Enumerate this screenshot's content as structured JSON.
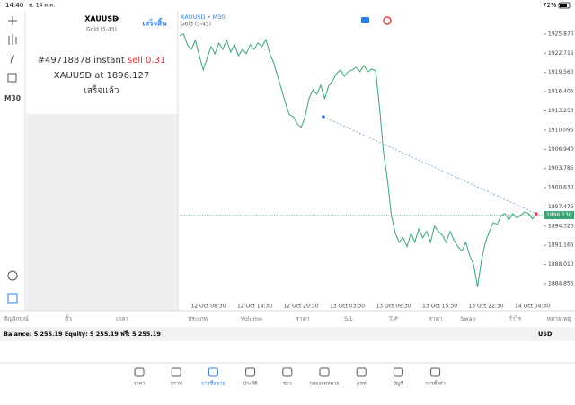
{
  "status_bar": {
    "time": "14:40",
    "date": "พ. 14 ต.ค.",
    "battery": "72%"
  },
  "left_toolbar": {
    "timeframe": "M30"
  },
  "trade_panel": {
    "symbol": "XAUUSD",
    "description": "Gold (5-45)",
    "done_button": "เสร็จสิ้น",
    "message": {
      "order": "#49718878 instant",
      "action": "sell 0.31",
      "detail": "XAUUSD at 1896.127",
      "status": "เสร็จแล้ว"
    }
  },
  "chart_data": {
    "type": "line",
    "title": "XAUUSD • M30",
    "subtitle": "Gold (5-45)",
    "x_labels": [
      "12 Oct 08:30",
      "12 Oct 14:30",
      "12 Oct 20:30",
      "13 Oct 03:30",
      "13 Oct 09:30",
      "13 Oct 15:30",
      "13 Oct 22:30",
      "14 Oct 04:30"
    ],
    "series": [
      {
        "color": "#3aa572",
        "values": [
          1925.58,
          1925.87,
          1924.1,
          1923.36,
          1924.84,
          1922.33,
          1919.97,
          1921.89,
          1923.81,
          1922.63,
          1924.4,
          1923.36,
          1924.84,
          1922.92,
          1924.1,
          1922.33,
          1923.36,
          1922.63,
          1924.1,
          1923.36,
          1924.4,
          1923.81,
          1924.99,
          1922.63,
          1921.15,
          1918.94,
          1916.73,
          1914.52,
          1912.6,
          1912.31,
          1911.13,
          1910.54,
          1912.31,
          1915.26,
          1916.73,
          1916.0,
          1917.47,
          1915.26,
          1917.32,
          1918.2,
          1919.38,
          1919.97,
          1918.94,
          1919.68,
          1919.97,
          1920.42,
          1919.68,
          1920.71,
          1919.68,
          1920.12,
          1919.83,
          1913.78,
          1906.41,
          1901.99,
          1896.09,
          1893.15,
          1891.67,
          1892.41,
          1890.94,
          1893.15,
          1891.67,
          1893.88,
          1892.41,
          1893.44,
          1891.67,
          1894.33,
          1893.44,
          1892.85,
          1891.67,
          1893.44,
          1891.97,
          1890.94,
          1890.2,
          1891.67,
          1889.46,
          1887.99,
          1884.3,
          1888.73,
          1891.67,
          1893.44,
          1894.92,
          1894.62,
          1896.09,
          1896.39,
          1895.36,
          1896.39,
          1895.65,
          1896.09,
          1896.68,
          1896.39,
          1895.51,
          1896.39
        ]
      }
    ],
    "ylim": [
      1881.9,
      1929.7
    ],
    "yticks": [
      {
        "value": 1925.87,
        "label": "1925.870"
      },
      {
        "value": 1922.715,
        "label": "1922.715"
      },
      {
        "value": 1919.56,
        "label": "1919.560"
      },
      {
        "value": 1916.405,
        "label": "1916.405"
      },
      {
        "value": 1913.25,
        "label": "1913.250"
      },
      {
        "value": 1910.095,
        "label": "1910.095"
      },
      {
        "value": 1906.94,
        "label": "1906.940"
      },
      {
        "value": 1903.785,
        "label": "1903.785"
      },
      {
        "value": 1900.63,
        "label": "1900.630"
      },
      {
        "value": 1897.475,
        "label": "1897.475"
      },
      {
        "value": 1894.32,
        "label": "1894.320"
      },
      {
        "value": 1891.165,
        "label": "1891.165"
      },
      {
        "value": 1888.01,
        "label": "1888.010"
      },
      {
        "value": 1884.855,
        "label": "1884.855"
      }
    ],
    "current_price": {
      "value": 1896.13,
      "label": "1896.130"
    },
    "grid": false
  },
  "table_headers": [
    "สัญลักษณ์",
    "ตั๋ว",
    "เวลา",
    "ประเภท",
    "Volume",
    "ราคา",
    "S/L",
    "T/P",
    "ราคา",
    "Swap",
    "กำไร",
    "หมายเหตุ"
  ],
  "balance": {
    "text": "Balance: 5 255.19 Equity: 5 255.19 ฟรี: 5 255.19",
    "currency": "USD"
  },
  "tabs": [
    "ราคา",
    "กราฟ",
    "การซื้อขาย",
    "ประวัติ",
    "ข่าว",
    "กล่องจดหมาย",
    "แชท",
    "บัญชี",
    "การตั้งค่า"
  ]
}
